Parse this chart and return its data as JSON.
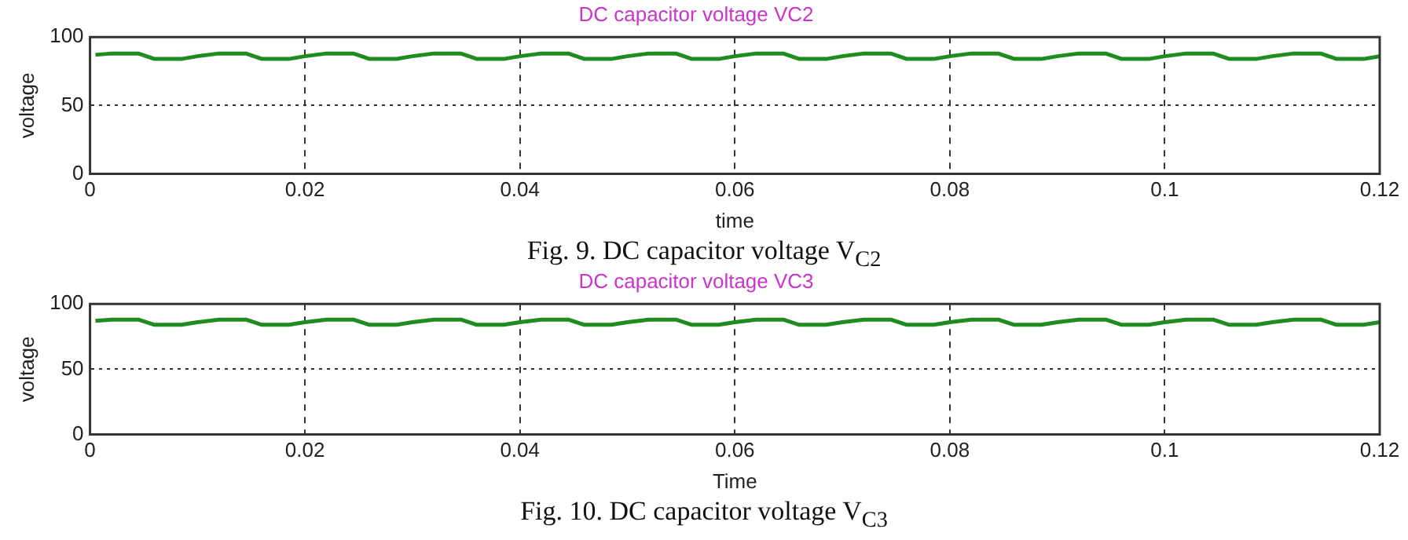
{
  "chart_data": [
    {
      "type": "line",
      "title": "DC capacitor voltage VC2",
      "xlabel": "time",
      "ylabel": "voltage",
      "xlim": [
        0,
        0.12
      ],
      "xticks": [
        0,
        0.02,
        0.04,
        0.06,
        0.08,
        0.1,
        0.12
      ],
      "ylim": [
        0,
        100
      ],
      "yticks": [
        0,
        50,
        100
      ],
      "grid": true,
      "x": [
        0.0005,
        0.002,
        0.0045,
        0.006,
        0.0085,
        0.01,
        0.012,
        0.0145,
        0.016,
        0.0185,
        0.02,
        0.022,
        0.0245,
        0.026,
        0.0285,
        0.03,
        0.032,
        0.0345,
        0.036,
        0.0385,
        0.04,
        0.042,
        0.0445,
        0.046,
        0.0485,
        0.05,
        0.052,
        0.0545,
        0.056,
        0.0585,
        0.06,
        0.062,
        0.0645,
        0.066,
        0.0685,
        0.07,
        0.072,
        0.0745,
        0.076,
        0.0785,
        0.08,
        0.082,
        0.0845,
        0.086,
        0.0885,
        0.09,
        0.092,
        0.0945,
        0.096,
        0.0985,
        0.1,
        0.102,
        0.1045,
        0.106,
        0.1085,
        0.11,
        0.112,
        0.1145,
        0.116,
        0.1185,
        0.12
      ],
      "series": [
        {
          "color": "#1e8c1e",
          "values": [
            87,
            88,
            88,
            84,
            84,
            86,
            88,
            88,
            84,
            84,
            86,
            88,
            88,
            84,
            84,
            86,
            88,
            88,
            84,
            84,
            86,
            88,
            88,
            84,
            84,
            86,
            88,
            88,
            84,
            84,
            86,
            88,
            88,
            84,
            84,
            86,
            88,
            88,
            84,
            84,
            86,
            88,
            88,
            84,
            84,
            86,
            88,
            88,
            84,
            84,
            86,
            88,
            88,
            84,
            84,
            86,
            88,
            88,
            84,
            84,
            86
          ]
        }
      ],
      "annotations": [
        "Fig. 9. DC capacitor voltage V$_{C2}$"
      ]
    },
    {
      "type": "line",
      "title": "DC capacitor voltage VC3",
      "xlabel": "Time",
      "ylabel": "voltage",
      "xlim": [
        0,
        0.12
      ],
      "xticks": [
        0,
        0.02,
        0.04,
        0.06,
        0.08,
        0.1,
        0.12
      ],
      "ylim": [
        0,
        100
      ],
      "yticks": [
        0,
        50,
        100
      ],
      "grid": true,
      "x": [
        0.0005,
        0.002,
        0.0045,
        0.006,
        0.0085,
        0.01,
        0.012,
        0.0145,
        0.016,
        0.0185,
        0.02,
        0.022,
        0.0245,
        0.026,
        0.0285,
        0.03,
        0.032,
        0.0345,
        0.036,
        0.0385,
        0.04,
        0.042,
        0.0445,
        0.046,
        0.0485,
        0.05,
        0.052,
        0.0545,
        0.056,
        0.0585,
        0.06,
        0.062,
        0.0645,
        0.066,
        0.0685,
        0.07,
        0.072,
        0.0745,
        0.076,
        0.0785,
        0.08,
        0.082,
        0.0845,
        0.086,
        0.0885,
        0.09,
        0.092,
        0.0945,
        0.096,
        0.0985,
        0.1,
        0.102,
        0.1045,
        0.106,
        0.1085,
        0.11,
        0.112,
        0.1145,
        0.116,
        0.1185,
        0.12
      ],
      "series": [
        {
          "color": "#1e8c1e",
          "values": [
            87,
            88,
            88,
            84,
            84,
            86,
            88,
            88,
            84,
            84,
            86,
            88,
            88,
            84,
            84,
            86,
            88,
            88,
            84,
            84,
            86,
            88,
            88,
            84,
            84,
            86,
            88,
            88,
            84,
            84,
            86,
            88,
            88,
            84,
            84,
            86,
            88,
            88,
            84,
            84,
            86,
            88,
            88,
            84,
            84,
            86,
            88,
            88,
            84,
            84,
            86,
            88,
            88,
            84,
            84,
            86,
            88,
            88,
            84,
            84,
            86
          ]
        }
      ],
      "annotations": [
        "Fig. 10. DC capacitor voltage V$_{C3}$"
      ]
    }
  ]
}
